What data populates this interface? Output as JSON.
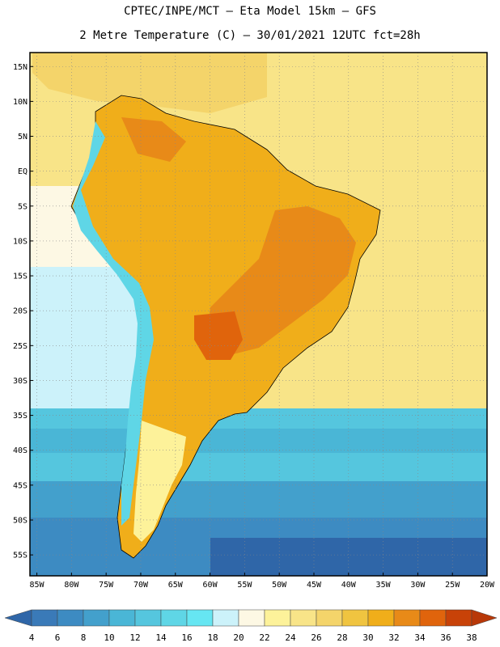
{
  "header": {
    "title_line1": "CPTEC/INPE/MCT –  Eta Model 15km – GFS",
    "title_line2": "2 Metre Temperature (C) – 30/01/2021 12UTC fct=28h"
  },
  "map": {
    "lat_labels": [
      "15N",
      "10N",
      "5N",
      "EQ",
      "5S",
      "10S",
      "15S",
      "20S",
      "25S",
      "30S",
      "35S",
      "40S",
      "45S",
      "50S",
      "55S"
    ],
    "lon_labels": [
      "85W",
      "80W",
      "75W",
      "70W",
      "65W",
      "60W",
      "55W",
      "50W",
      "45W",
      "40W",
      "35W",
      "30W",
      "25W",
      "20W"
    ],
    "lat_values": [
      15,
      10,
      5,
      0,
      -5,
      -10,
      -15,
      -20,
      -25,
      -30,
      -35,
      -40,
      -45,
      -50,
      -55
    ],
    "lon_values": [
      -85,
      -80,
      -75,
      -70,
      -65,
      -60,
      -55,
      -50,
      -45,
      -40,
      -35,
      -30,
      -25,
      -20
    ],
    "lat_range": [
      -58,
      17
    ],
    "lon_range": [
      -86,
      -20
    ]
  },
  "colorbar": {
    "labels": [
      "4",
      "6",
      "8",
      "10",
      "12",
      "14",
      "16",
      "18",
      "20",
      "22",
      "24",
      "26",
      "28",
      "30",
      "32",
      "34",
      "36",
      "38"
    ],
    "colors": [
      "#3a7ab8",
      "#3d8bc2",
      "#43a0cc",
      "#4ab6d6",
      "#55c6de",
      "#5fd6e6",
      "#66e6f2",
      "#ccf2fa",
      "#fdf8e4",
      "#fdf29a",
      "#f8e488",
      "#f4d46a",
      "#f0c440",
      "#f0ae1a",
      "#e88a18",
      "#e0640c",
      "#c84208"
    ],
    "low_color": "#2f66a8",
    "high_color": "#b83808"
  },
  "regions": [
    {
      "name": "north-atlantic",
      "color": "#f8e488"
    },
    {
      "name": "caribbean",
      "color": "#f4d46a"
    },
    {
      "name": "south-america-land",
      "color": "#f0ae1a"
    },
    {
      "name": "hot-core-brazil",
      "color": "#e88a18"
    },
    {
      "name": "pacific-subtropical",
      "color": "#ccf2fa"
    },
    {
      "name": "pacific-tropical",
      "color": "#fdf8e4"
    },
    {
      "name": "southern-ocean-mid",
      "color": "#55c6de"
    },
    {
      "name": "southern-ocean-deep",
      "color": "#2f66a8"
    }
  ]
}
